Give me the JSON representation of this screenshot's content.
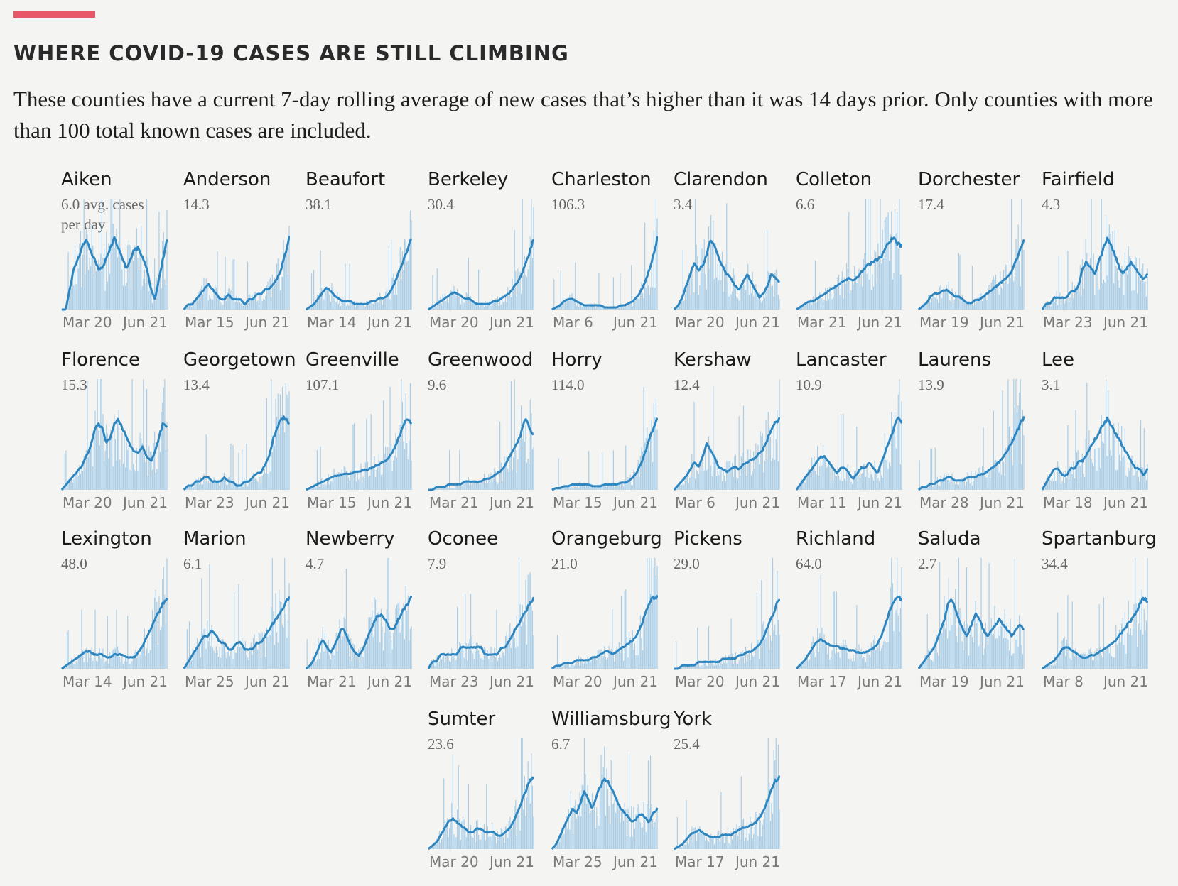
{
  "header": {
    "title": "WHERE COVID-19 CASES ARE STILL CLIMBING",
    "subtitle": "These counties have a current 7-day rolling average of new cases that’s higher than it was 14 days prior. Only counties with more than 100 total known cases are included."
  },
  "colors": {
    "accent": "#e8566a",
    "line": "#2e86c1",
    "bars": "#a9cde6"
  },
  "chart_data": {
    "type": "line",
    "title": "WHERE COVID-19 CASES ARE STILL CLIMBING",
    "description_unit": "avg. cases per day",
    "first_avg_suffix": " avg. cases per day",
    "series": [
      {
        "name": "Aiken",
        "avg": "6.0",
        "start": "Mar 20",
        "end": "Jun 21",
        "shape": [
          0,
          0,
          2,
          4,
          5,
          6,
          7,
          6,
          5,
          4,
          4,
          5,
          6,
          7,
          6,
          5,
          4,
          5,
          6,
          6,
          5,
          4,
          2,
          1,
          3,
          5,
          7
        ]
      },
      {
        "name": "Anderson",
        "avg": "14.3",
        "start": "Mar 15",
        "end": "Jun 21",
        "shape": [
          0,
          1,
          1,
          2,
          3,
          4,
          5,
          4,
          3,
          2,
          2,
          3,
          2,
          2,
          2,
          1,
          2,
          2,
          3,
          3,
          4,
          4,
          5,
          6,
          8,
          11,
          14
        ]
      },
      {
        "name": "Beaufort",
        "avg": "38.1",
        "start": "Mar 14",
        "end": "Jun 21",
        "shape": [
          0,
          1,
          2,
          4,
          6,
          8,
          7,
          5,
          4,
          3,
          3,
          3,
          2,
          2,
          2,
          2,
          3,
          3,
          4,
          4,
          5,
          7,
          10,
          14,
          18,
          22,
          26
        ]
      },
      {
        "name": "Berkeley",
        "avg": "30.4",
        "start": "Mar 20",
        "end": "Jun 21",
        "shape": [
          0,
          1,
          2,
          3,
          4,
          5,
          6,
          6,
          5,
          4,
          4,
          3,
          2,
          2,
          2,
          2,
          3,
          3,
          4,
          5,
          6,
          8,
          10,
          13,
          17,
          21,
          26
        ]
      },
      {
        "name": "Charleston",
        "avg": "106.3",
        "start": "Mar 6",
        "end": "Jun 21",
        "shape": [
          0,
          1,
          2,
          4,
          5,
          5,
          4,
          3,
          2,
          2,
          2,
          2,
          2,
          1,
          1,
          1,
          1,
          2,
          2,
          3,
          4,
          6,
          9,
          13,
          19,
          26,
          34
        ]
      },
      {
        "name": "Clarendon",
        "avg": "3.4",
        "start": "Mar 20",
        "end": "Jun 21",
        "shape": [
          0,
          1,
          3,
          6,
          9,
          12,
          10,
          11,
          14,
          18,
          16,
          13,
          11,
          9,
          8,
          6,
          5,
          7,
          9,
          7,
          5,
          3,
          4,
          6,
          9,
          8,
          7
        ]
      },
      {
        "name": "Colleton",
        "avg": "6.6",
        "start": "Mar 21",
        "end": "Jun 21",
        "shape": [
          0,
          1,
          2,
          3,
          3,
          4,
          5,
          6,
          7,
          8,
          9,
          10,
          11,
          12,
          11,
          12,
          14,
          16,
          17,
          18,
          19,
          20,
          23,
          26,
          27,
          25,
          24
        ]
      },
      {
        "name": "Dorchester",
        "avg": "17.4",
        "start": "Mar 19",
        "end": "Jun 21",
        "shape": [
          0,
          1,
          2,
          4,
          5,
          5,
          6,
          6,
          5,
          4,
          4,
          3,
          2,
          2,
          3,
          3,
          4,
          5,
          6,
          7,
          8,
          9,
          10,
          12,
          15,
          18,
          22
        ]
      },
      {
        "name": "Fairfield",
        "avg": "4.3",
        "start": "Mar 23",
        "end": "Jun 21",
        "shape": [
          0,
          1,
          1,
          2,
          2,
          2,
          2,
          3,
          3,
          4,
          7,
          8,
          7,
          6,
          8,
          10,
          12,
          11,
          9,
          7,
          6,
          7,
          8,
          7,
          6,
          5,
          6
        ]
      },
      {
        "name": "Florence",
        "avg": "15.3",
        "start": "Mar 20",
        "end": "Jun 21",
        "shape": [
          0,
          1,
          2,
          3,
          4,
          5,
          7,
          9,
          12,
          14,
          13,
          10,
          11,
          14,
          15,
          13,
          11,
          9,
          8,
          8,
          9,
          7,
          6,
          8,
          11,
          14,
          13
        ]
      },
      {
        "name": "Georgetown",
        "avg": "13.4",
        "start": "Mar 23",
        "end": "Jun 21",
        "shape": [
          0,
          1,
          1,
          2,
          2,
          3,
          3,
          2,
          2,
          2,
          3,
          2,
          2,
          1,
          1,
          2,
          2,
          3,
          4,
          4,
          6,
          8,
          12,
          15,
          17,
          17,
          16
        ]
      },
      {
        "name": "Greenville",
        "avg": "107.1",
        "start": "Mar 15",
        "end": "Jun 21",
        "shape": [
          0,
          1,
          2,
          3,
          4,
          5,
          6,
          7,
          7,
          8,
          8,
          8,
          9,
          9,
          10,
          10,
          11,
          12,
          13,
          14,
          15,
          18,
          22,
          27,
          32,
          36,
          34
        ]
      },
      {
        "name": "Greenwood",
        "avg": "9.6",
        "start": "Mar 21",
        "end": "Jun 21",
        "shape": [
          0,
          0,
          1,
          1,
          1,
          2,
          2,
          2,
          2,
          3,
          3,
          3,
          3,
          3,
          4,
          4,
          5,
          6,
          7,
          9,
          12,
          15,
          17,
          21,
          26,
          22,
          20
        ]
      },
      {
        "name": "Horry",
        "avg": "114.0",
        "start": "Mar 15",
        "end": "Jun 21",
        "shape": [
          0,
          1,
          1,
          2,
          2,
          3,
          3,
          3,
          3,
          3,
          2,
          2,
          2,
          3,
          3,
          3,
          3,
          4,
          4,
          5,
          7,
          10,
          15,
          21,
          28,
          35,
          40
        ]
      },
      {
        "name": "Kershaw",
        "avg": "12.4",
        "start": "Mar 6",
        "end": "Jun 21",
        "shape": [
          0,
          2,
          4,
          6,
          9,
          12,
          10,
          14,
          20,
          17,
          14,
          10,
          9,
          8,
          9,
          10,
          9,
          11,
          12,
          13,
          14,
          16,
          18,
          22,
          26,
          29,
          31
        ]
      },
      {
        "name": "Lancaster",
        "avg": "10.9",
        "start": "Mar 11",
        "end": "Jun 21",
        "shape": [
          0,
          1,
          2,
          3,
          4,
          5,
          6,
          6,
          5,
          4,
          3,
          4,
          4,
          3,
          2,
          3,
          4,
          4,
          5,
          4,
          3,
          5,
          7,
          9,
          11,
          13,
          12
        ]
      },
      {
        "name": "Laurens",
        "avg": "13.9",
        "start": "Mar 28",
        "end": "Jun 21",
        "shape": [
          0,
          1,
          1,
          2,
          2,
          3,
          3,
          4,
          4,
          3,
          3,
          3,
          4,
          4,
          4,
          5,
          5,
          6,
          7,
          8,
          9,
          11,
          13,
          15,
          18,
          21,
          23
        ]
      },
      {
        "name": "Lee",
        "avg": "3.1",
        "start": "Mar 18",
        "end": "Jun 21",
        "shape": [
          0,
          1,
          2,
          3,
          3,
          2,
          2,
          3,
          3,
          4,
          4,
          5,
          6,
          7,
          8,
          9,
          10,
          9,
          8,
          7,
          6,
          5,
          4,
          3,
          3,
          2,
          3
        ]
      },
      {
        "name": "Lexington",
        "avg": "48.0",
        "start": "Mar 14",
        "end": "Jun 21",
        "shape": [
          0,
          1,
          2,
          3,
          4,
          5,
          6,
          6,
          5,
          5,
          5,
          4,
          4,
          5,
          5,
          5,
          4,
          4,
          4,
          6,
          8,
          11,
          14,
          17,
          20,
          23,
          25
        ]
      },
      {
        "name": "Marion",
        "avg": "6.1",
        "start": "Mar 25",
        "end": "Jun 21",
        "shape": [
          0,
          1,
          2,
          3,
          4,
          5,
          5,
          6,
          5,
          4,
          4,
          3,
          3,
          4,
          4,
          3,
          3,
          3,
          4,
          4,
          5,
          6,
          7,
          8,
          9,
          10,
          11
        ]
      },
      {
        "name": "Newberry",
        "avg": "4.7",
        "start": "Mar 21",
        "end": "Jun 21",
        "shape": [
          0,
          1,
          3,
          6,
          9,
          7,
          5,
          7,
          10,
          13,
          10,
          7,
          5,
          4,
          6,
          9,
          12,
          15,
          17,
          16,
          14,
          12,
          13,
          16,
          18,
          20,
          22
        ]
      },
      {
        "name": "Oconee",
        "avg": "7.9",
        "start": "Mar 23",
        "end": "Jun 21",
        "shape": [
          0,
          1,
          1,
          2,
          2,
          2,
          2,
          2,
          3,
          3,
          3,
          3,
          3,
          3,
          2,
          2,
          2,
          2,
          3,
          3,
          4,
          5,
          6,
          7,
          8,
          9,
          10
        ]
      },
      {
        "name": "Orangeburg",
        "avg": "21.0",
        "start": "Mar 20",
        "end": "Jun 21",
        "shape": [
          0,
          1,
          1,
          2,
          2,
          2,
          3,
          3,
          3,
          3,
          4,
          4,
          5,
          6,
          6,
          5,
          6,
          7,
          8,
          9,
          10,
          12,
          15,
          19,
          23,
          25,
          25
        ]
      },
      {
        "name": "Pickens",
        "avg": "29.0",
        "start": "Mar 20",
        "end": "Jun 21",
        "shape": [
          0,
          0,
          1,
          1,
          1,
          1,
          2,
          2,
          2,
          2,
          2,
          2,
          3,
          3,
          3,
          3,
          4,
          4,
          5,
          5,
          6,
          7,
          9,
          12,
          15,
          18,
          21
        ]
      },
      {
        "name": "Richland",
        "avg": "64.0",
        "start": "Mar 17",
        "end": "Jun 21",
        "shape": [
          0,
          2,
          4,
          7,
          10,
          13,
          15,
          13,
          12,
          11,
          11,
          10,
          10,
          9,
          9,
          8,
          8,
          8,
          9,
          10,
          12,
          16,
          22,
          28,
          33,
          35,
          34
        ]
      },
      {
        "name": "Saluda",
        "avg": "2.7",
        "start": "Mar 19",
        "end": "Jun 21",
        "shape": [
          0,
          1,
          2,
          3,
          4,
          6,
          8,
          11,
          13,
          11,
          9,
          7,
          6,
          8,
          10,
          9,
          7,
          6,
          7,
          8,
          9,
          8,
          7,
          6,
          7,
          8,
          7
        ]
      },
      {
        "name": "Spartanburg",
        "avg": "34.4",
        "start": "Mar 8",
        "end": "Jun 21",
        "shape": [
          0,
          1,
          2,
          3,
          5,
          7,
          8,
          7,
          6,
          5,
          4,
          4,
          5,
          5,
          6,
          7,
          8,
          9,
          10,
          12,
          14,
          16,
          18,
          20,
          23,
          26,
          24
        ]
      },
      {
        "name": "Sumter",
        "avg": "23.6",
        "start": "Mar 20",
        "end": "Jun 21",
        "shape": [
          0,
          1,
          2,
          4,
          6,
          8,
          9,
          8,
          7,
          6,
          5,
          5,
          6,
          6,
          5,
          5,
          5,
          4,
          4,
          5,
          6,
          8,
          11,
          14,
          17,
          20,
          21
        ]
      },
      {
        "name": "Williamsburg",
        "avg": "6.7",
        "start": "Mar 25",
        "end": "Jun 21",
        "shape": [
          0,
          1,
          3,
          5,
          7,
          9,
          8,
          10,
          13,
          11,
          9,
          12,
          14,
          16,
          15,
          13,
          11,
          9,
          8,
          7,
          6,
          7,
          8,
          7,
          6,
          8,
          9
        ]
      },
      {
        "name": "York",
        "avg": "25.4",
        "start": "Mar 17",
        "end": "Jun 21",
        "shape": [
          0,
          1,
          2,
          4,
          6,
          7,
          8,
          7,
          6,
          5,
          5,
          5,
          6,
          6,
          6,
          7,
          8,
          9,
          9,
          10,
          11,
          13,
          16,
          20,
          25,
          29,
          30
        ]
      }
    ]
  }
}
